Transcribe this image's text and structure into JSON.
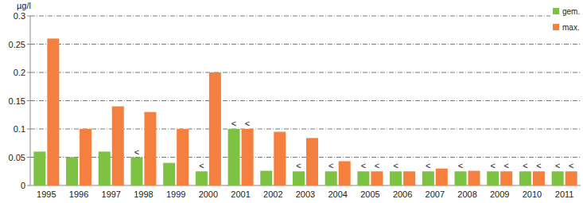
{
  "chart_data": {
    "type": "bar",
    "ylabel": "µg/l",
    "categories": [
      "1995",
      "1996",
      "1997",
      "1998",
      "1999",
      "2000",
      "2001",
      "2002",
      "2003",
      "2004",
      "2005",
      "2006",
      "2007",
      "2008",
      "2009",
      "2010",
      "2011"
    ],
    "series": [
      {
        "name": "gem.",
        "color": "#7dc242",
        "values": [
          0.06,
          0.05,
          0.06,
          0.05,
          0.04,
          0.025,
          0.1,
          0.026,
          0.025,
          0.025,
          0.025,
          0.025,
          0.025,
          0.025,
          0.025,
          0.025,
          0.025
        ]
      },
      {
        "name": "max.",
        "color": "#f47f3f",
        "values": [
          0.26,
          0.1,
          0.14,
          0.13,
          0.1,
          0.2,
          0.1,
          0.095,
          0.084,
          0.043,
          0.025,
          0.025,
          0.03,
          0.026,
          0.025,
          0.025,
          0.025
        ]
      }
    ],
    "annotations": [
      {
        "series": 0,
        "index": 3,
        "text": "<"
      },
      {
        "series": 0,
        "index": 5,
        "text": "<"
      },
      {
        "series": 0,
        "index": 6,
        "text": "<"
      },
      {
        "series": 1,
        "index": 6,
        "text": "<"
      },
      {
        "series": 0,
        "index": 8,
        "text": "<"
      },
      {
        "series": 0,
        "index": 9,
        "text": "<"
      },
      {
        "series": 0,
        "index": 10,
        "text": "<"
      },
      {
        "series": 1,
        "index": 10,
        "text": "<"
      },
      {
        "series": 0,
        "index": 11,
        "text": "<"
      },
      {
        "series": 0,
        "index": 12,
        "text": "<"
      },
      {
        "series": 0,
        "index": 13,
        "text": "<"
      },
      {
        "series": 0,
        "index": 14,
        "text": "<"
      },
      {
        "series": 1,
        "index": 14,
        "text": "<"
      },
      {
        "series": 0,
        "index": 15,
        "text": "<"
      },
      {
        "series": 1,
        "index": 15,
        "text": "<"
      },
      {
        "series": 0,
        "index": 16,
        "text": "<"
      },
      {
        "series": 1,
        "index": 16,
        "text": "<"
      }
    ],
    "ylim": [
      0,
      0.3
    ],
    "yticks": [
      0,
      0.05,
      0.1,
      0.15,
      0.2,
      0.25,
      0.3
    ],
    "grid": true,
    "legend": "top-right"
  }
}
